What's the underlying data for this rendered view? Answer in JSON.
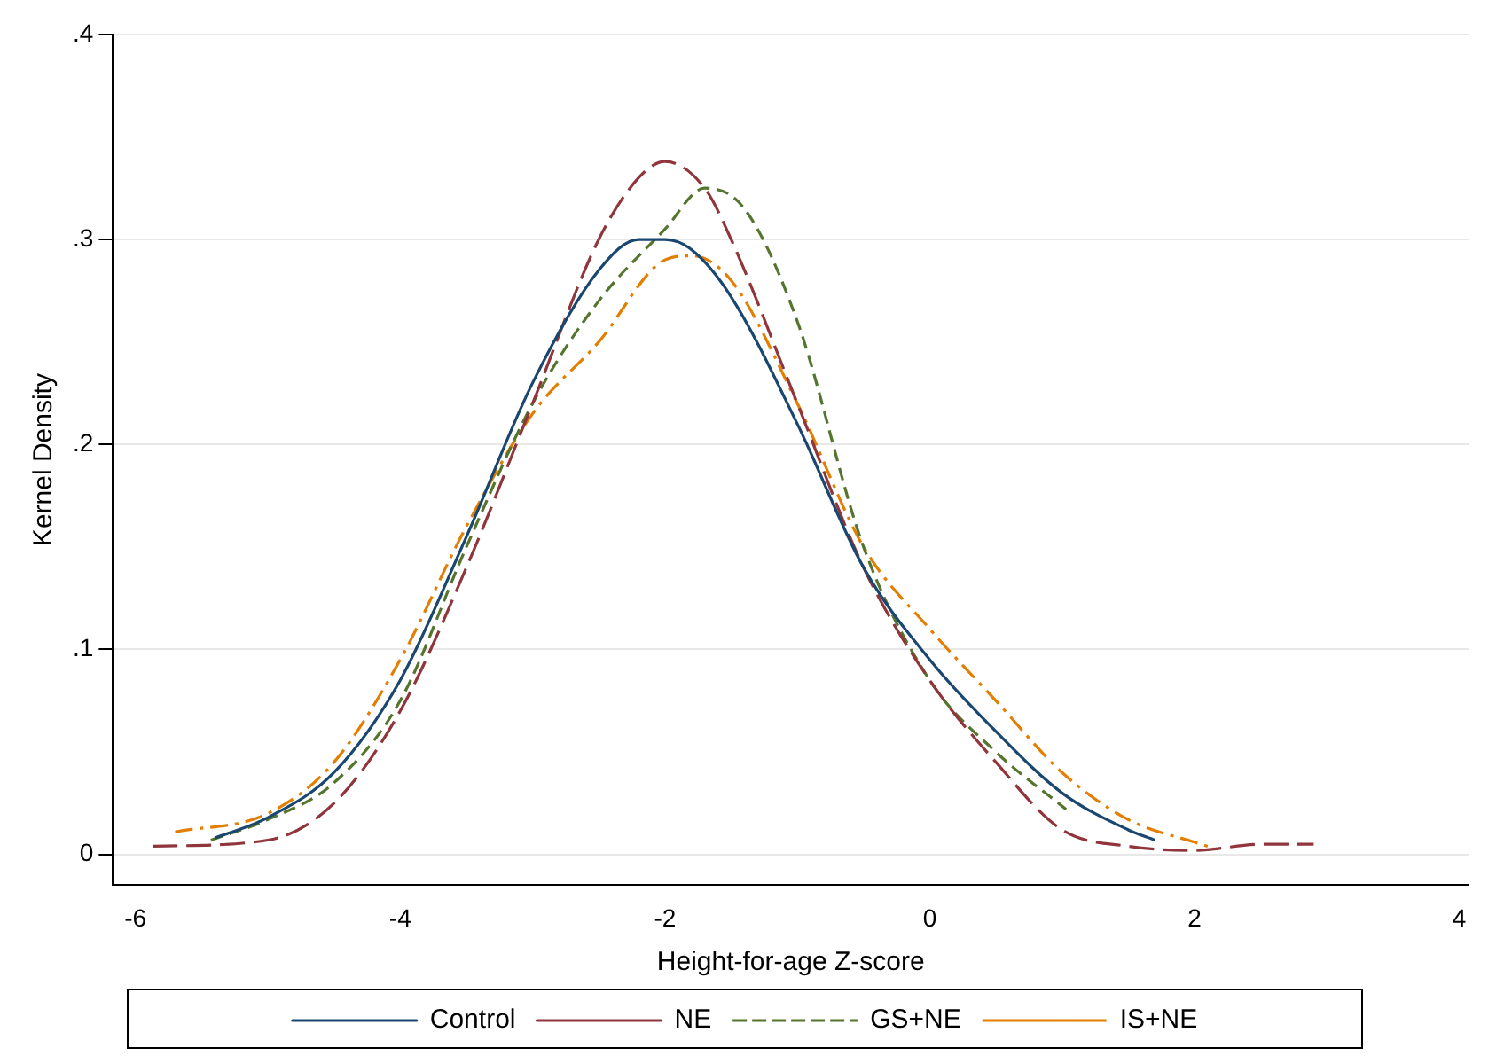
{
  "chart_data": {
    "type": "line",
    "xlabel": "Height-for-age Z-score",
    "ylabel": "Kernel Density",
    "xlim": [
      -6.17,
      4.07
    ],
    "ylim": [
      -0.015,
      0.4
    ],
    "xticks": [
      -6,
      -4,
      -2,
      0,
      2,
      4
    ],
    "yticks": [
      {
        "value": 0,
        "label": "0"
      },
      {
        "value": 0.1,
        "label": ".1"
      },
      {
        "value": 0.2,
        "label": ".2"
      },
      {
        "value": 0.3,
        "label": ".3"
      },
      {
        "value": 0.4,
        "label": ".4"
      }
    ],
    "grid": "y",
    "legend": "bottom",
    "marker": "none",
    "series": [
      {
        "name": "Control",
        "color": "#1a476f",
        "line_style": "solid",
        "x": [
          -5.4,
          -5,
          -4.5,
          -4,
          -3.5,
          -3,
          -2.5,
          -2.2,
          -2,
          -1.8,
          -1.5,
          -1,
          -0.5,
          0,
          0.5,
          1,
          1.5,
          1.7
        ],
        "values": [
          0.008,
          0.018,
          0.04,
          0.085,
          0.155,
          0.23,
          0.285,
          0.3,
          0.3,
          0.295,
          0.272,
          0.21,
          0.14,
          0.095,
          0.06,
          0.03,
          0.012,
          0.007
        ]
      },
      {
        "name": "NE",
        "color": "#90353b",
        "line_style": "dashed",
        "x": [
          -5.87,
          -5,
          -4.5,
          -4,
          -3.5,
          -3,
          -2.5,
          -2.2,
          -2,
          -1.7,
          -1.5,
          -1,
          -0.5,
          0,
          0.5,
          1,
          1.5,
          2,
          2.5,
          2.9
        ],
        "values": [
          0.004,
          0.007,
          0.025,
          0.07,
          0.14,
          0.22,
          0.3,
          0.33,
          0.338,
          0.325,
          0.3,
          0.22,
          0.14,
          0.085,
          0.045,
          0.012,
          0.004,
          0.002,
          0.005,
          0.005
        ]
      },
      {
        "name": "GS+NE",
        "color": "#55752f",
        "line_style": "dashed",
        "x": [
          -5.43,
          -5,
          -4.5,
          -4,
          -3.5,
          -3,
          -2.5,
          -2,
          -1.7,
          -1.4,
          -1,
          -0.5,
          0,
          0.5,
          1.03
        ],
        "values": [
          0.007,
          0.017,
          0.035,
          0.075,
          0.15,
          0.22,
          0.27,
          0.305,
          0.325,
          0.315,
          0.26,
          0.15,
          0.085,
          0.05,
          0.022
        ]
      },
      {
        "name": "IS+NE",
        "color": "#e37e00",
        "line_style": "dashed",
        "x": [
          -5.7,
          -5,
          -4.5,
          -4,
          -3.5,
          -3,
          -2.5,
          -2,
          -1.8,
          -1.5,
          -1,
          -0.5,
          0,
          0.5,
          1,
          1.5,
          2,
          2.1
        ],
        "values": [
          0.011,
          0.02,
          0.045,
          0.095,
          0.16,
          0.215,
          0.25,
          0.29,
          0.292,
          0.28,
          0.22,
          0.15,
          0.11,
          0.075,
          0.04,
          0.017,
          0.006,
          0.004
        ]
      }
    ]
  }
}
